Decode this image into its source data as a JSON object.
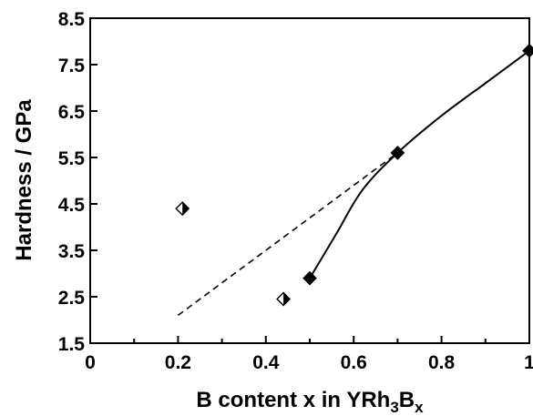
{
  "chart_data": {
    "type": "scatter",
    "xlabel": "B content x in YRh",
    "xlabel_sub1": "3",
    "xlabel_mid": "B",
    "xlabel_sub2": "x",
    "ylabel": "Hardness / GPa",
    "xlim": [
      0,
      1
    ],
    "ylim": [
      1.5,
      8.5
    ],
    "x_ticks": [
      "0",
      "0.2",
      "0.4",
      "0.6",
      "0.8",
      "1"
    ],
    "y_ticks": [
      "1.5",
      "2.5",
      "3.5",
      "4.5",
      "5.5",
      "6.5",
      "7.5",
      "8.5"
    ],
    "grid": false,
    "series": [
      {
        "marker": "filled-diamond",
        "color": "#000000",
        "x": [
          0.5,
          0.7,
          1.0
        ],
        "y": [
          2.9,
          5.6,
          7.8
        ]
      },
      {
        "marker": "half-filled-diamond",
        "color": "#000000",
        "x": [
          0.21,
          0.44
        ],
        "y": [
          4.4,
          2.45
        ]
      }
    ],
    "lines": [
      {
        "style": "solid-curve",
        "x": [
          0.5,
          0.56,
          0.62,
          0.7,
          0.8,
          0.9,
          1.0
        ],
        "y": [
          2.9,
          3.85,
          4.8,
          5.6,
          6.4,
          7.1,
          7.8
        ]
      },
      {
        "style": "dashed",
        "x": [
          0.2,
          0.7
        ],
        "y": [
          2.1,
          5.6
        ]
      }
    ]
  }
}
